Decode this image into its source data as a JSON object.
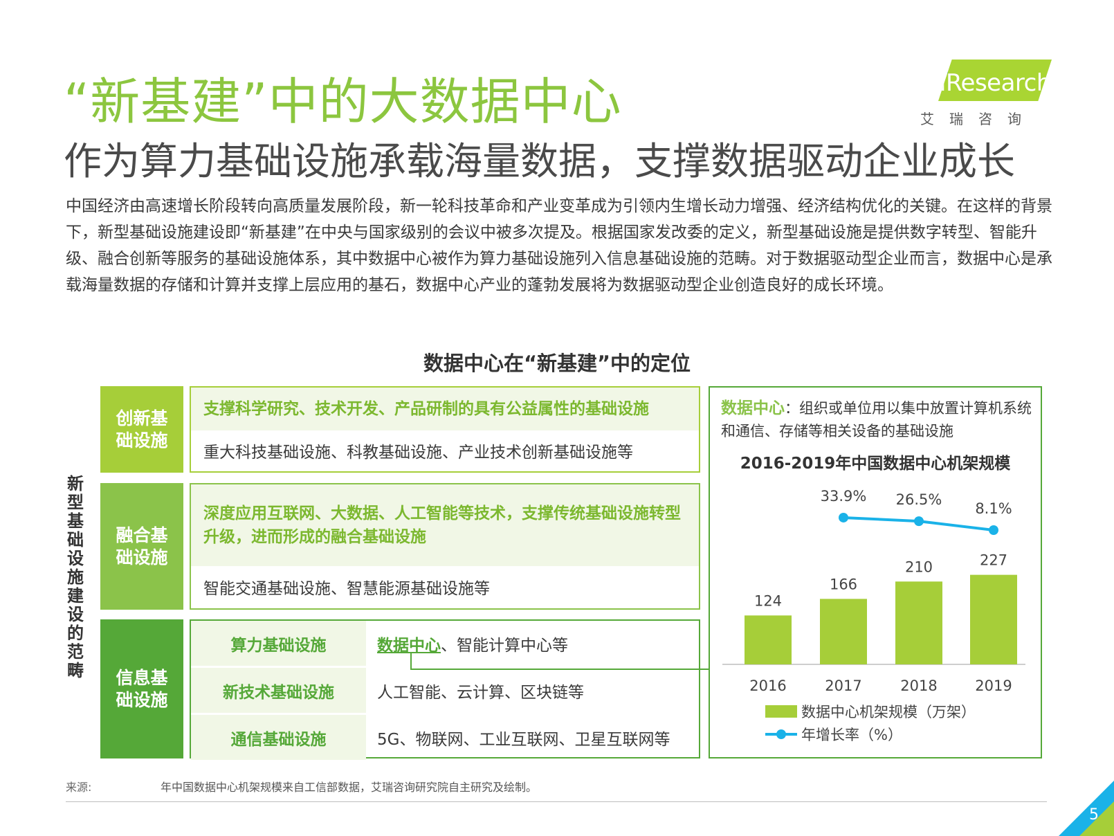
{
  "header": {
    "title": "“新基建”中的大数据中心",
    "subtitle": "作为算力基础设施承载海量数据，支撑数据驱动企业成长"
  },
  "logo": {
    "text": "iResearch",
    "cn": "艾瑞咨询"
  },
  "intro": "中国经济由高速增长阶段转向高质量发展阶段，新一轮科技革命和产业变革成为引领内生增长动力增强、经济结构优化的关键。在这样的背景下，新型基础设施建设即“新基建”在中央与国家级别的会议中被多次提及。根据国家发改委的定义，新型基础设施是提供数字转型、智能升级、融合创新等服务的基础设施体系，其中数据中心被作为算力基础设施列入信息基础设施的范畴。对于数据驱动型企业而言，数据中心是承载海量数据的存储和计算并支撑上层应用的基石，数据中心产业的蓬勃发展将为数据驱动型企业创造良好的成长环境。",
  "diagram": {
    "title": "数据中心在“新基建”中的定位",
    "vertical_label": "新型基础设施建设的范畴",
    "categories": [
      {
        "name": "创新基础设施",
        "highlight": "支撑科学研究、技术开发、产品研制的具有公益属性的基础设施",
        "examples": "重大科技基础设施、科教基础设施、产业技术创新基础设施等"
      },
      {
        "name": "融合基础设施",
        "highlight": "深度应用互联网、大数据、人工智能等技术，支撑传统基础设施转型升级，进而形成的融合基础设施",
        "examples": "智能交通基础设施、智慧能源基础设施等"
      },
      {
        "name": "信息基础设施",
        "rows": [
          {
            "key": "算力基础设施",
            "link": "数据中心",
            "value": "、智能计算中心等"
          },
          {
            "key": "新技术基础设施",
            "value": "人工智能、云计算、区块链等"
          },
          {
            "key": "通信基础设施",
            "value": "5G、物联网、工业互联网、卫星互联网等"
          }
        ]
      }
    ]
  },
  "panel": {
    "term": "数据中心",
    "definition": "：组织或单位用以集中放置计算机系统和通信、存储等相关设备的基础设施"
  },
  "chart_data": {
    "type": "bar",
    "title": "2016-2019年中国数据中心机架规模",
    "categories": [
      "2016",
      "2017",
      "2018",
      "2019"
    ],
    "series": [
      {
        "name": "数据中心机架规模（万架）",
        "type": "bar",
        "values": [
          124,
          166,
          210,
          227
        ],
        "labels": [
          "124",
          "166",
          "210",
          "227"
        ]
      },
      {
        "name": "年增长率（%）",
        "type": "line",
        "x": [
          "2017",
          "2018",
          "2019"
        ],
        "values": [
          33.9,
          26.5,
          8.1
        ],
        "labels": [
          "33.9%",
          "26.5%",
          "8.1%"
        ]
      }
    ],
    "colors": {
      "bar": "#a6ce39",
      "line": "#1ab2e8"
    },
    "legend_position": "bottom"
  },
  "footer": {
    "source_label": "来源:",
    "note": "年中国数据中心机架规模来自工信部数据，艾瑞咨询研究院自主研究及绘制。"
  },
  "page_number": "5"
}
